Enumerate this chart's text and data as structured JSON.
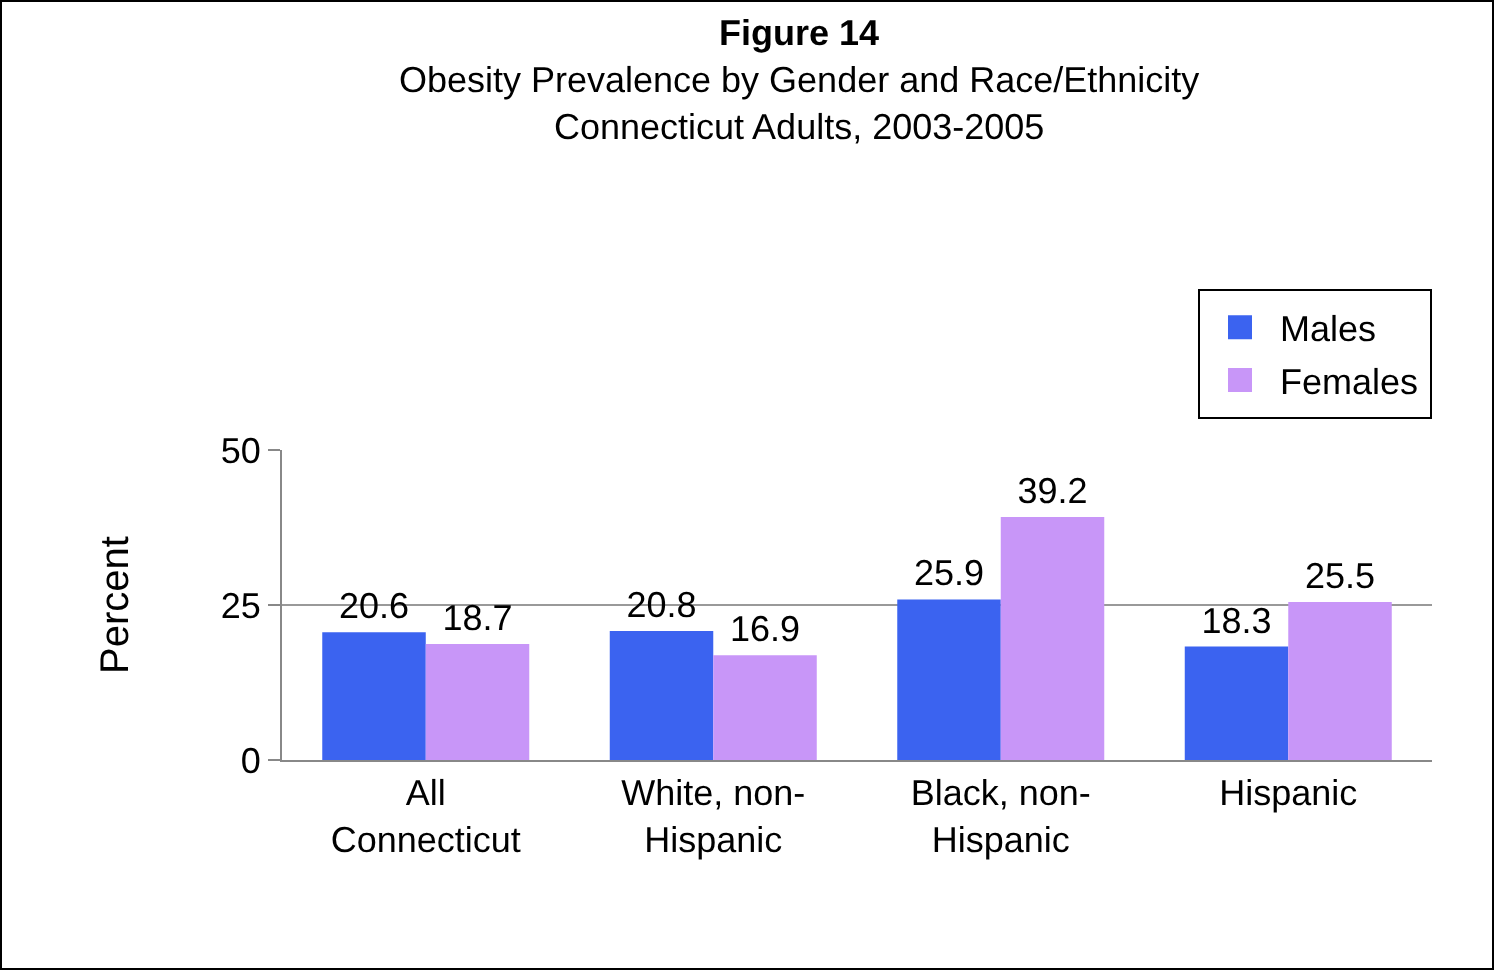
{
  "chart_data": {
    "type": "bar",
    "title": "Figure 14",
    "subtitle": "Obesity Prevalence by Gender and Race/Ethnicity\nConnecticut Adults, 2003-2005",
    "ylabel": "Percent",
    "categories": [
      "All\nConnecticut",
      "White, non-\nHispanic",
      "Black, non-\nHispanic",
      "Hispanic"
    ],
    "series": [
      {
        "name": "Males",
        "color": "#3b63f0",
        "values": [
          20.6,
          20.8,
          25.9,
          18.3
        ]
      },
      {
        "name": "Females",
        "color": "#c896f8",
        "values": [
          18.7,
          16.9,
          39.2,
          25.5
        ]
      }
    ],
    "ylim": [
      0,
      50
    ],
    "yticks": [
      0,
      25,
      50
    ],
    "grid": "y",
    "legend": "top right",
    "data_labels": true
  }
}
